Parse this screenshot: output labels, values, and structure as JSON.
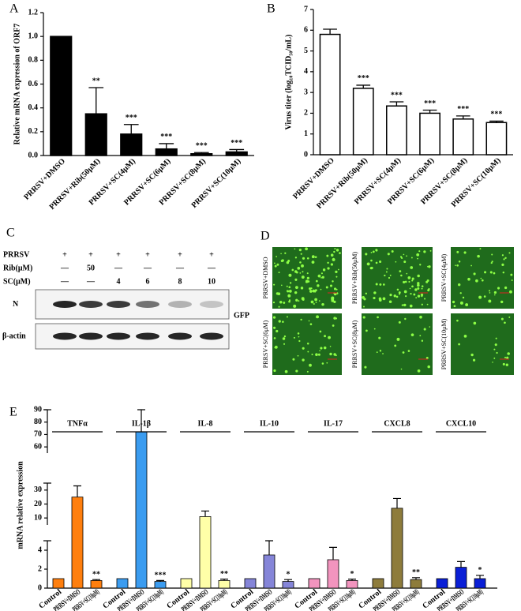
{
  "chart_data": [
    {
      "type": "bar",
      "panel": "A",
      "ylabel": "Relative mRNA expression of ORF7",
      "categories": [
        "PRRSV+DMSO",
        "PRRSV+Rib(50μM)",
        "PRRSV+SC(4μM)",
        "PRRSV+SC(6μM)",
        "PRRSV+SC(8μM)",
        "PRRSV+SC(10μM)"
      ],
      "values": [
        1.0,
        0.35,
        0.18,
        0.055,
        0.015,
        0.03
      ],
      "errors": [
        null,
        0.22,
        0.08,
        0.045,
        0.01,
        0.02
      ],
      "significance": [
        null,
        "**",
        "***",
        "***",
        "***",
        "***"
      ],
      "color": "#000000",
      "edgecolor": "#000000",
      "ylim": [
        0,
        1.2
      ],
      "yticks": [
        {
          "value": 0,
          "label": "0.0"
        },
        {
          "value": 0.2,
          "label": "0.2"
        },
        {
          "value": 0.4,
          "label": "0.4"
        },
        {
          "value": 0.6,
          "label": "0.6"
        },
        {
          "value": 0.8,
          "label": "0.8"
        },
        {
          "value": 1,
          "label": "1.0"
        },
        {
          "value": 1.2,
          "label": "1.2"
        }
      ]
    },
    {
      "type": "bar",
      "panel": "B",
      "ylabel": "Virus titer (log₁₀TCID₅₀/mL)",
      "categories": [
        "PRRSV+DMSO",
        "PRRSV+Rib(50μM)",
        "PRRSV+SC(4μM)",
        "PRRSV+SC(6μM)",
        "PRRSV+SC(8μM)",
        "PRRSV+SC(10μM)"
      ],
      "values": [
        5.8,
        3.2,
        2.35,
        2.0,
        1.72,
        1.55
      ],
      "errors": [
        0.25,
        0.15,
        0.2,
        0.15,
        0.15,
        0.07
      ],
      "significance": [
        null,
        "***",
        "***",
        "***",
        "***",
        "***"
      ],
      "color": "#ffffff",
      "edgecolor": "#000000",
      "ylim": [
        0,
        7
      ],
      "yticks": [
        0,
        1,
        2,
        3,
        4,
        5,
        6,
        7
      ]
    },
    {
      "type": "grouped_bar",
      "panel": "E",
      "ylabel": "mRNA relative expression",
      "categories": [
        "Control",
        "PRRSV+DMSO",
        "PRRSV+SC(10μM)"
      ],
      "y_segments": [
        {
          "ylim": [
            0,
            5
          ],
          "yticks": [
            0,
            2,
            4
          ]
        },
        {
          "ylim": [
            5,
            35
          ],
          "yticks": [
            10,
            20,
            30
          ]
        },
        {
          "ylim": [
            55,
            90
          ],
          "yticks": [
            60,
            70,
            80,
            90
          ]
        }
      ],
      "groups": [
        {
          "name": "TNFα",
          "color": "#ff7f0e",
          "values": [
            1,
            25,
            0.8
          ],
          "errors": [
            null,
            8,
            0.1
          ],
          "significance": [
            null,
            null,
            "**"
          ]
        },
        {
          "name": "IL-1β",
          "color": "#3b9cf0",
          "values": [
            1,
            72,
            0.7
          ],
          "errors": [
            null,
            18,
            0.1
          ],
          "significance": [
            null,
            null,
            "***"
          ]
        },
        {
          "name": "IL-8",
          "color": "#ffffa8",
          "values": [
            1,
            11,
            0.8
          ],
          "errors": [
            null,
            4,
            0.15
          ],
          "significance": [
            null,
            null,
            "**"
          ]
        },
        {
          "name": "IL-10",
          "color": "#8585d8",
          "values": [
            1,
            3.5,
            0.7
          ],
          "errors": [
            null,
            1.5,
            0.2
          ],
          "significance": [
            null,
            null,
            "*"
          ]
        },
        {
          "name": "IL-17",
          "color": "#f294be",
          "values": [
            1,
            3.0,
            0.8
          ],
          "errors": [
            null,
            1.3,
            0.15
          ],
          "significance": [
            null,
            null,
            "*"
          ]
        },
        {
          "name": "CXCL8",
          "color": "#8e7c3c",
          "values": [
            1,
            17,
            0.9
          ],
          "errors": [
            null,
            7,
            0.2
          ],
          "significance": [
            null,
            null,
            "**"
          ]
        },
        {
          "name": "CXCL10",
          "color": "#0a1fd6",
          "values": [
            1,
            2.2,
            1.0
          ],
          "errors": [
            null,
            0.6,
            0.35
          ],
          "significance": [
            null,
            null,
            "*"
          ]
        }
      ]
    }
  ],
  "blot": {
    "panel": "C",
    "rows": [
      {
        "label": "PRRSV",
        "cells": [
          "+",
          "+",
          "+",
          "+",
          "+",
          "+"
        ]
      },
      {
        "label": "Rib(μM)",
        "cells": [
          "—",
          "50",
          "—",
          "—",
          "—",
          "—"
        ]
      },
      {
        "label": "SC(μM)",
        "cells": [
          "—",
          "—",
          "4",
          "6",
          "8",
          "10"
        ]
      }
    ],
    "bands": [
      "N",
      "β-actin"
    ]
  },
  "images": {
    "panel": "D",
    "channel": "GFP",
    "labels": [
      "PRRSV+DMSO",
      "PRRSV+Rib(50μM)",
      "PRRSV+SC(4μM)",
      "PRRSV+SC(6μM)",
      "PRRSV+SC(8μM)",
      "PRRSV+SC(10μM)"
    ]
  }
}
